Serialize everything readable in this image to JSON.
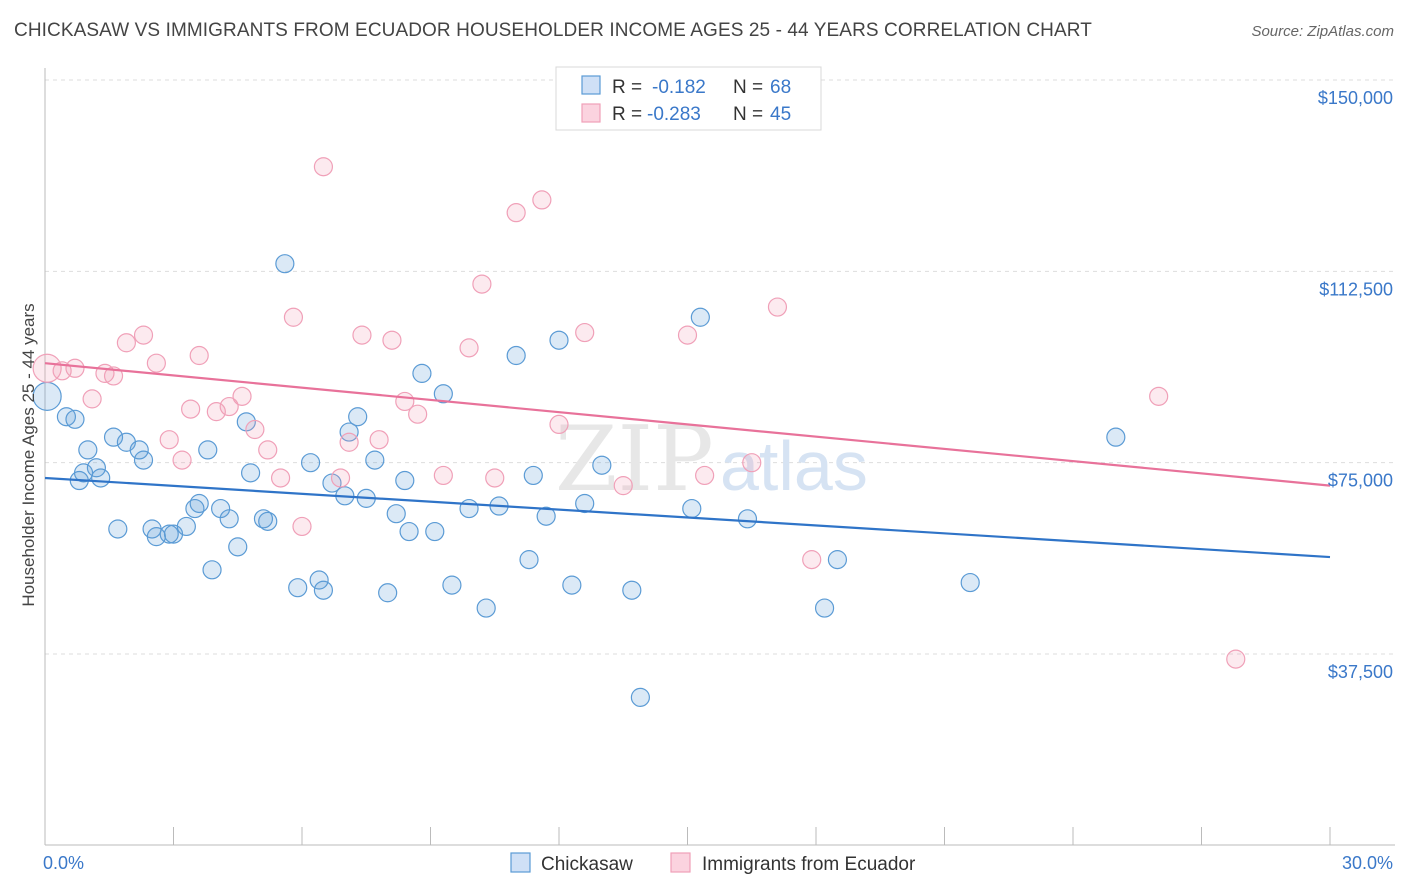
{
  "header": {
    "title": "CHICKASAW VS IMMIGRANTS FROM ECUADOR HOUSEHOLDER INCOME AGES 25 - 44 YEARS CORRELATION CHART",
    "source": "Source: ZipAtlas.com"
  },
  "watermark": {
    "zip": "ZIP",
    "atlas": "atlas"
  },
  "colors": {
    "blue": "#5b9bd5",
    "blue_line": "#2f74c8",
    "pink": "#f0a0b8",
    "pink_line": "#e8729a",
    "tick": "#3a78c9"
  },
  "legend": {
    "rows": [
      {
        "r_label": "R =",
        "r_value": "-0.182",
        "n_label": "N =",
        "n_value": "68"
      },
      {
        "r_label": "R =",
        "r_value": "-0.283",
        "n_label": "N =",
        "n_value": "45"
      }
    ]
  },
  "chart_data": {
    "type": "scatter",
    "ylabel": "Householder Income Ages 25 - 44 years",
    "x_ticks": [
      "0.0%",
      "30.0%"
    ],
    "y_ticks": [
      "$150,000",
      "$112,500",
      "$75,000",
      "$37,500"
    ],
    "xlim": [
      0,
      30
    ],
    "ylim": [
      0,
      155000
    ],
    "grid": true,
    "legend_position": "top-center",
    "series": [
      {
        "name": "Chickasaw",
        "color": "#5b9bd5",
        "trend": {
          "x": [
            0,
            30
          ],
          "y": [
            72000,
            56500
          ]
        },
        "points": [
          [
            0.05,
            88000
          ],
          [
            0.5,
            84000
          ],
          [
            0.7,
            83500
          ],
          [
            0.8,
            71500
          ],
          [
            0.9,
            73000
          ],
          [
            1.0,
            77500
          ],
          [
            1.2,
            74000
          ],
          [
            1.3,
            72000
          ],
          [
            1.6,
            80000
          ],
          [
            1.7,
            62000
          ],
          [
            1.9,
            79000
          ],
          [
            2.2,
            77500
          ],
          [
            2.3,
            75500
          ],
          [
            2.5,
            62000
          ],
          [
            2.6,
            60500
          ],
          [
            2.9,
            61000
          ],
          [
            3.0,
            61000
          ],
          [
            3.3,
            62500
          ],
          [
            3.5,
            66000
          ],
          [
            3.6,
            67000
          ],
          [
            3.8,
            77500
          ],
          [
            3.9,
            54000
          ],
          [
            4.1,
            66000
          ],
          [
            4.3,
            64000
          ],
          [
            4.5,
            58500
          ],
          [
            4.7,
            83000
          ],
          [
            4.8,
            73000
          ],
          [
            5.1,
            64000
          ],
          [
            5.2,
            63500
          ],
          [
            5.6,
            114000
          ],
          [
            5.9,
            50500
          ],
          [
            6.2,
            75000
          ],
          [
            6.4,
            52000
          ],
          [
            6.5,
            50000
          ],
          [
            6.7,
            71000
          ],
          [
            7.0,
            68500
          ],
          [
            7.1,
            81000
          ],
          [
            7.3,
            84000
          ],
          [
            7.5,
            68000
          ],
          [
            7.7,
            75500
          ],
          [
            8.0,
            49500
          ],
          [
            8.2,
            65000
          ],
          [
            8.4,
            71500
          ],
          [
            8.5,
            61500
          ],
          [
            8.8,
            92500
          ],
          [
            9.1,
            61500
          ],
          [
            9.3,
            88500
          ],
          [
            9.5,
            51000
          ],
          [
            9.9,
            66000
          ],
          [
            10.3,
            46500
          ],
          [
            10.6,
            66500
          ],
          [
            11.0,
            96000
          ],
          [
            11.3,
            56000
          ],
          [
            11.4,
            72500
          ],
          [
            11.7,
            64500
          ],
          [
            12.0,
            99000
          ],
          [
            12.3,
            51000
          ],
          [
            12.6,
            67000
          ],
          [
            13.0,
            74500
          ],
          [
            13.7,
            50000
          ],
          [
            13.9,
            29000
          ],
          [
            15.1,
            66000
          ],
          [
            15.3,
            103500
          ],
          [
            16.4,
            64000
          ],
          [
            18.2,
            46500
          ],
          [
            18.5,
            56000
          ],
          [
            21.6,
            51500
          ],
          [
            25.0,
            80000
          ]
        ]
      },
      {
        "name": "Immigrants from Ecuador",
        "color": "#f0a0b8",
        "trend": {
          "x": [
            0,
            30
          ],
          "y": [
            94500,
            70500
          ]
        },
        "points": [
          [
            0.05,
            93500
          ],
          [
            0.4,
            93000
          ],
          [
            0.7,
            93500
          ],
          [
            1.1,
            87500
          ],
          [
            1.4,
            92500
          ],
          [
            1.6,
            92000
          ],
          [
            1.9,
            98500
          ],
          [
            2.3,
            100000
          ],
          [
            2.6,
            94500
          ],
          [
            2.9,
            79500
          ],
          [
            3.2,
            75500
          ],
          [
            3.4,
            85500
          ],
          [
            3.6,
            96000
          ],
          [
            4.0,
            85000
          ],
          [
            4.3,
            86000
          ],
          [
            4.6,
            88000
          ],
          [
            4.9,
            81500
          ],
          [
            5.2,
            77500
          ],
          [
            5.5,
            72000
          ],
          [
            5.8,
            103500
          ],
          [
            6.0,
            62500
          ],
          [
            6.5,
            133000
          ],
          [
            6.9,
            72000
          ],
          [
            7.1,
            79000
          ],
          [
            7.4,
            100000
          ],
          [
            7.8,
            79500
          ],
          [
            8.1,
            99000
          ],
          [
            8.4,
            87000
          ],
          [
            8.7,
            84500
          ],
          [
            9.3,
            72500
          ],
          [
            9.9,
            97500
          ],
          [
            10.2,
            110000
          ],
          [
            10.5,
            72000
          ],
          [
            11.0,
            124000
          ],
          [
            11.6,
            126500
          ],
          [
            12.0,
            82500
          ],
          [
            12.6,
            100500
          ],
          [
            13.5,
            70500
          ],
          [
            15.0,
            100000
          ],
          [
            15.4,
            72500
          ],
          [
            16.5,
            75000
          ],
          [
            17.1,
            105500
          ],
          [
            17.9,
            56000
          ],
          [
            26.0,
            88000
          ],
          [
            27.8,
            36500
          ]
        ]
      }
    ]
  }
}
